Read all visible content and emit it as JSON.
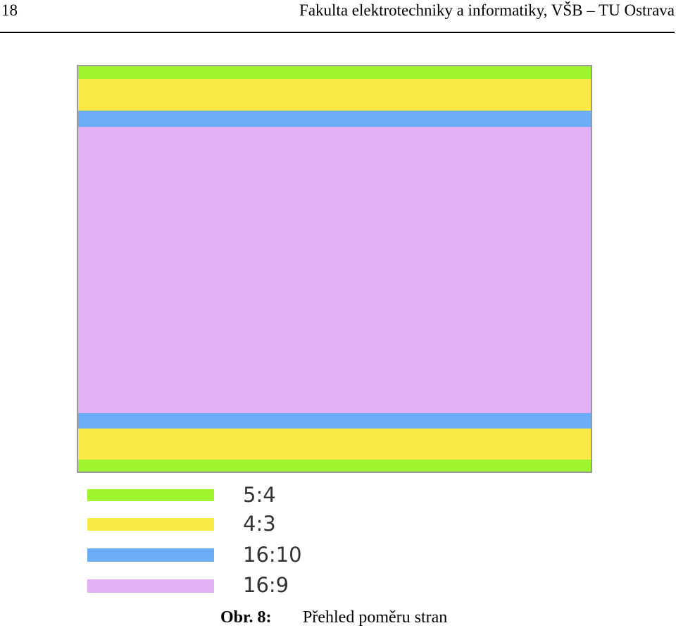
{
  "header": {
    "page_number": "18",
    "title": "Fakulta elektrotechniky a informatiky, VŠB – TU Ostrava"
  },
  "figure": {
    "legend": [
      {
        "label": "5:4",
        "color": "#9ef52d"
      },
      {
        "label": "4:3",
        "color": "#fbe945"
      },
      {
        "label": "16:10",
        "color": "#6caef5"
      },
      {
        "label": "16:9",
        "color": "#e3aff5"
      }
    ]
  },
  "caption": {
    "label": "Obr. 8:",
    "text": "Přehled poměru stran"
  }
}
